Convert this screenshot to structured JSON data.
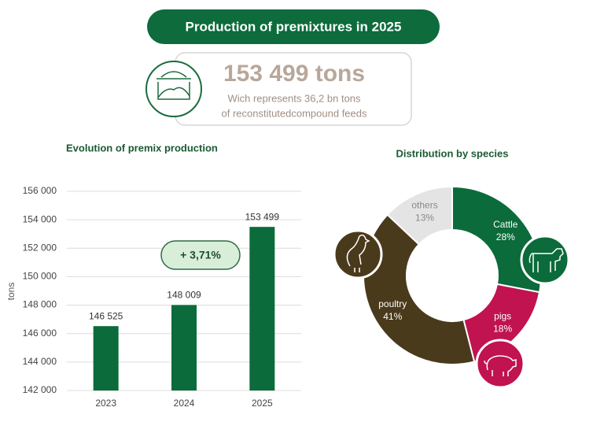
{
  "header": {
    "title": "Production of premixtures in 2025"
  },
  "summary": {
    "value": "153 499 tons",
    "line1": "Wich represents 36,2 bn tons",
    "line2": "of reconstitutedcompound feeds"
  },
  "chart_data": [
    {
      "type": "bar",
      "title": "Evolution of premix production",
      "y_label": "tons",
      "categories": [
        "2023",
        "2024",
        "2025"
      ],
      "values": [
        146525,
        148009,
        153499
      ],
      "value_labels": [
        "146 525",
        "148 009",
        "153 499"
      ],
      "color": "#0b6b3a",
      "ylim": [
        142000,
        156000
      ],
      "yticks": [
        {
          "value": 142000,
          "label": "142 000"
        },
        {
          "value": 144000,
          "label": "144 000"
        },
        {
          "value": 146000,
          "label": "146 000"
        },
        {
          "value": 148000,
          "label": "148 000"
        },
        {
          "value": 150000,
          "label": "150 000"
        },
        {
          "value": 152000,
          "label": "152 000"
        },
        {
          "value": 154000,
          "label": "154 000"
        },
        {
          "value": 156000,
          "label": "156 000"
        }
      ],
      "grid": true,
      "annotation": "+ 3,71%"
    },
    {
      "type": "donut",
      "title": "Distribution by species",
      "categories": [
        "Cattle",
        "pigs",
        "poultry",
        "others"
      ],
      "values": [
        28,
        18,
        41,
        13
      ],
      "value_labels": [
        "28%",
        "18%",
        "41%",
        "13%"
      ],
      "colors": [
        "#0b6b3a",
        "#c0134f",
        "#4a3a1c",
        "#e4e4e4"
      ]
    }
  ]
}
